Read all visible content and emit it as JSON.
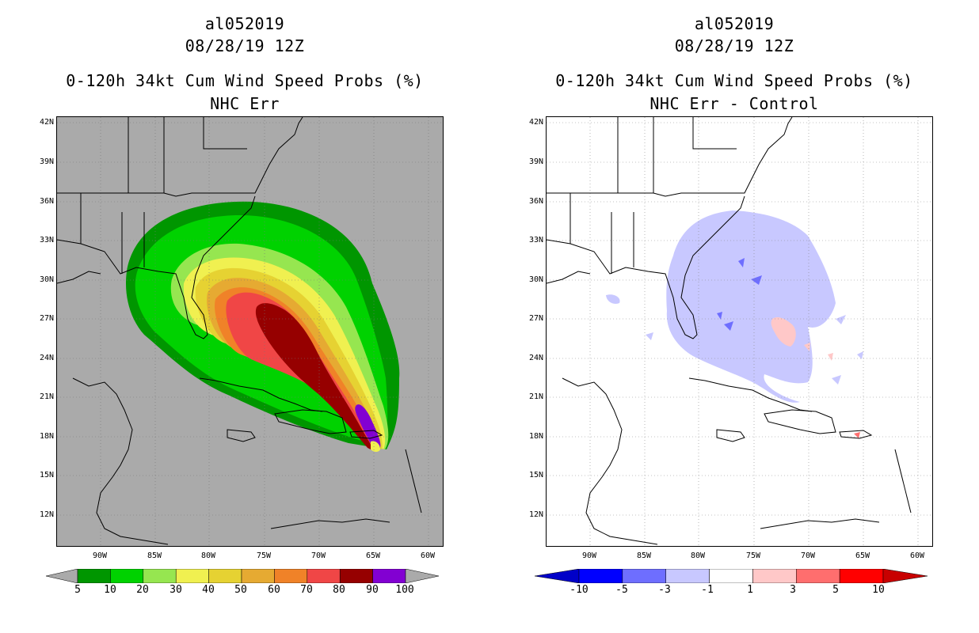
{
  "left_panel": {
    "storm_id": "al052019",
    "datetime": "08/28/19 12Z",
    "product": "0-120h 34kt Cum Wind Speed Probs (%)",
    "subtitle": "NHC Err",
    "lat_labels": [
      "42N",
      "39N",
      "36N",
      "33N",
      "30N",
      "27N",
      "24N",
      "21N",
      "18N",
      "15N",
      "12N"
    ],
    "lon_labels": [
      "90W",
      "85W",
      "80W",
      "75W",
      "70W",
      "65W",
      "60W"
    ],
    "colorbar": {
      "colors": [
        "#009600",
        "#00d200",
        "#96e650",
        "#f0f050",
        "#e6d232",
        "#e6aa32",
        "#f08228",
        "#f04646",
        "#960000",
        "#8200d2"
      ],
      "labels": [
        "5",
        "10",
        "20",
        "30",
        "40",
        "50",
        "60",
        "70",
        "80",
        "90",
        "100"
      ]
    }
  },
  "right_panel": {
    "storm_id": "al052019",
    "datetime": "08/28/19 12Z",
    "product": "0-120h 34kt Cum Wind Speed Probs (%)",
    "subtitle": "NHC Err - Control",
    "lat_labels": [
      "42N",
      "39N",
      "36N",
      "33N",
      "30N",
      "27N",
      "24N",
      "21N",
      "18N",
      "15N",
      "12N"
    ],
    "lon_labels": [
      "90W",
      "85W",
      "80W",
      "75W",
      "70W",
      "65W",
      "60W"
    ],
    "colorbar": {
      "colors": [
        "#0000c8",
        "#0000ff",
        "#6e6eff",
        "#c8c8ff",
        "#ffffff",
        "#ffc8c8",
        "#ff6e6e",
        "#ff0000",
        "#c80000"
      ],
      "labels": [
        "-10",
        "-5",
        "-3",
        "-1",
        "1",
        "3",
        "5",
        "10"
      ]
    }
  }
}
